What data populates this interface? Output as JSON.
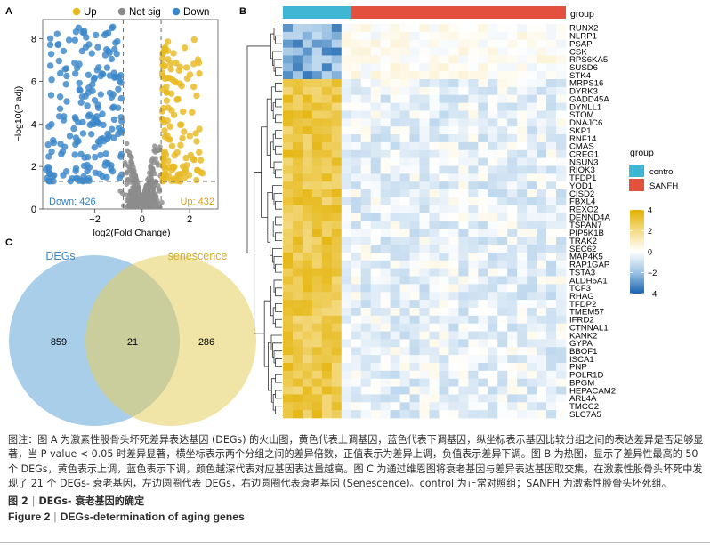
{
  "panels": {
    "a": {
      "letter": "A"
    },
    "b": {
      "letter": "B"
    },
    "c": {
      "letter": "C"
    }
  },
  "chart_data": [
    {
      "type": "scatter",
      "panel": "A",
      "legend": {
        "position": "top",
        "entries": [
          {
            "label": "Up",
            "color": "#e8b923"
          },
          {
            "label": "Not sig",
            "color": "#8c8c8c"
          },
          {
            "label": "Down",
            "color": "#3a87c9"
          }
        ]
      },
      "xlabel": "log2(Fold Change)",
      "ylabel": "−log10(P adj)",
      "x_ticks": [
        "−2",
        "0",
        "2"
      ],
      "y_ticks": [
        "0",
        "2",
        "4",
        "6",
        "8"
      ],
      "xlim": [
        -4.2,
        3.2
      ],
      "ylim": [
        0,
        8.9
      ],
      "thresholds": {
        "logfc": [
          -0.8,
          0.8
        ],
        "padj_line": 1.3
      },
      "annotations": {
        "down": "Down: 426",
        "up": "Up: 432"
      },
      "counts": {
        "up": 432,
        "down": 426
      }
    },
    {
      "type": "heatmap",
      "panel": "B",
      "annotation_label": "group",
      "groups": [
        {
          "name": "control",
          "color": "#41b6d4",
          "columns": 7
        },
        {
          "name": "SANFH",
          "color": "#e3503e",
          "columns": 22
        }
      ],
      "genes": [
        "RUNX2",
        "NLRP1",
        "PSAP",
        "CSK",
        "RPS6KA5",
        "SUSD6",
        "STK4",
        "MRPS16",
        "DYRK3",
        "GADD45A",
        "DYNLL1",
        "STOM",
        "DNAJC6",
        "SKP1",
        "RNF14",
        "CMAS",
        "CREG1",
        "NSUN3",
        "RIOK3",
        "TFDP1",
        "YOD1",
        "CISD2",
        "FBXL4",
        "REXO2",
        "DENND4A",
        "TSPAN7",
        "PIP5K1B",
        "TRAK2",
        "SEC62",
        "MAP4K5",
        "RAP1GAP",
        "TSTA3",
        "ALDH5A1",
        "TCF3",
        "RHAG",
        "TFDP2",
        "TMEM57",
        "IFRD2",
        "CTNNAL1",
        "KANK2",
        "GYPA",
        "BBOF1",
        "ISCA1",
        "PNP",
        "POLR1D",
        "BPGM",
        "HEPACAM2",
        "ARL4A",
        "TMCC2",
        "SLC7A5"
      ],
      "down_genes_count": 7,
      "legend_title": "group",
      "scale_ticks": [
        "4",
        "2",
        "0",
        "−2",
        "−4"
      ],
      "scale_range": [
        -4,
        4
      ]
    },
    {
      "type": "venn",
      "panel": "C",
      "sets": [
        {
          "label": "DEGs",
          "only": "859",
          "color": "#4a98d1"
        },
        {
          "label": "senescence",
          "only": "286",
          "color": "#e6ce5f"
        }
      ],
      "intersection": "21"
    }
  ],
  "caption": {
    "notes": "图注：图 A 为激素性股骨头坏死差异表达基因 (DEGs) 的火山图，黄色代表上调基因，蓝色代表下调基因，纵坐标表示基因比较分组之间的表达差异是否足够显著，当 P value < 0.05 时差异显著，横坐标表示两个分组之间的差异倍数，正值表示为差异上调，负值表示差异下调。图 B 为热图，显示了差异性最高的 50 个 DEGs，黄色表示上调，蓝色表示下调，颜色越深代表对应基因表达量越高。图 C 为通过维恩图将衰老基因与差异表达基因取交集，在激素性股骨头坏死中发现了 21 个 DEGs- 衰老基因，左边圆圈代表 DEGs，右边圆圈代表衰老基因 (Senescence)。control 为正常对照组；SANFH 为激素性股骨头坏死组。",
    "figure_label_cn": "图 2",
    "figure_title_cn": "DEGs- 衰老基因的确定",
    "figure_label_en": "Figure 2",
    "figure_title_en": "DEGs-determination of aging genes"
  }
}
